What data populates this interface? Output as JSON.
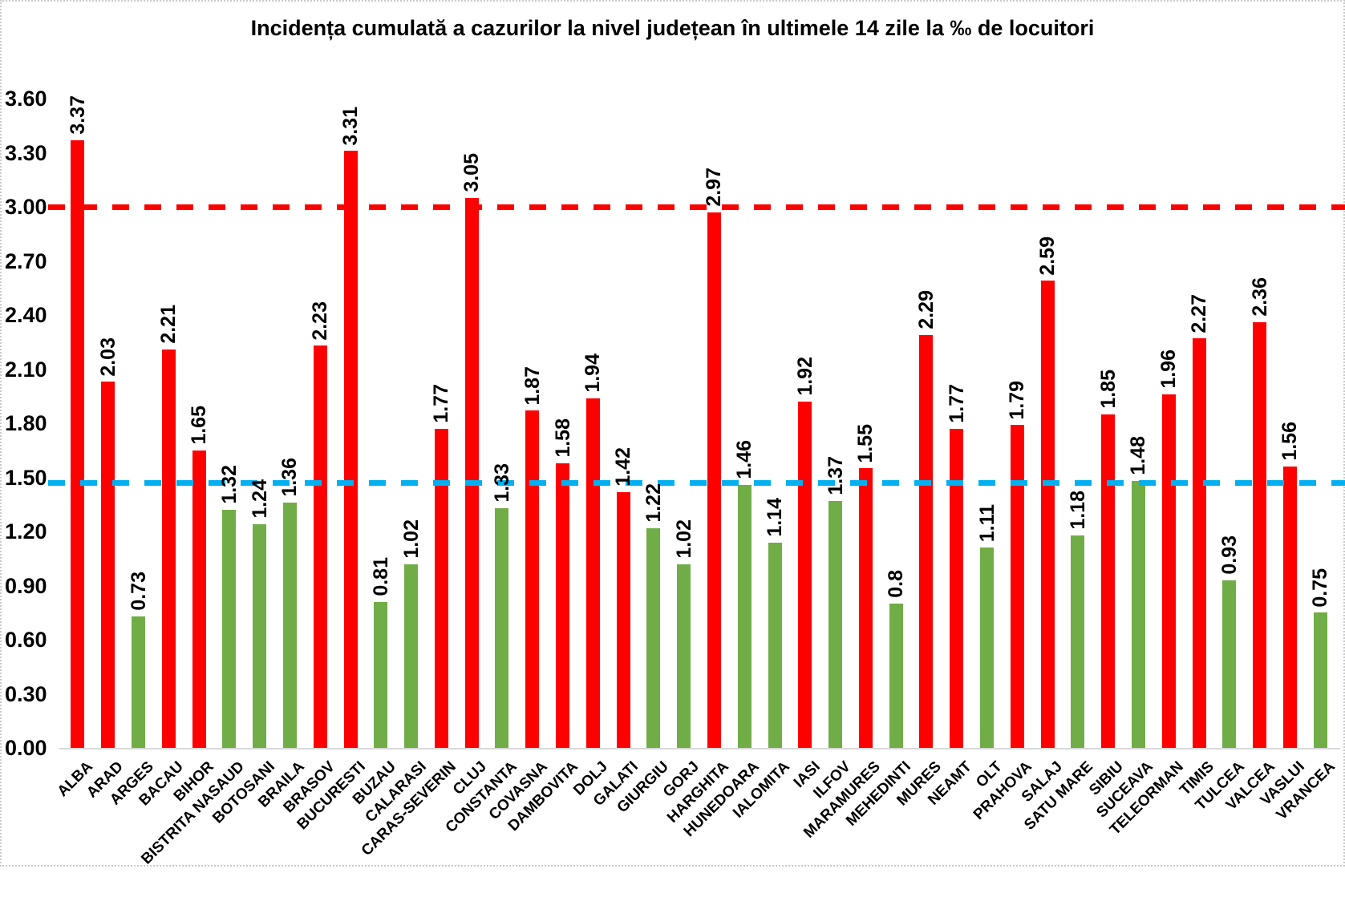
{
  "page": {
    "background": "#FFFFFF",
    "border_color": "#C9C9C9"
  },
  "chart_data": {
    "type": "bar",
    "title": "Incidența cumulată a cazurilor la nivel județean în ultimele 14 zile la ‰ de locuitori",
    "xlabel": "",
    "ylabel": "",
    "ylim": [
      0,
      3.6
    ],
    "ytick_labels": [
      "0.00",
      "0.30",
      "0.60",
      "0.90",
      "1.20",
      "1.50",
      "1.80",
      "2.10",
      "2.40",
      "2.70",
      "3.00",
      "3.30",
      "3.60"
    ],
    "grid": false,
    "legend": false,
    "axis_line_color": "#D9D9D9",
    "colors": {
      "red": "#FF0000",
      "green": "#70AD47"
    },
    "reference_lines": [
      {
        "name": "reference-line-red",
        "value": 3.0,
        "color": "#FF0000",
        "style": "dashed"
      },
      {
        "name": "reference-line-blue",
        "value": 1.47,
        "color": "#00B0F0",
        "style": "dashed"
      }
    ],
    "bars": [
      {
        "category": "ALBA",
        "value": 3.37,
        "label": "3.37",
        "color": "red"
      },
      {
        "category": "ARAD",
        "value": 2.03,
        "label": "2.03",
        "color": "red"
      },
      {
        "category": "ARGES",
        "value": 0.73,
        "label": "0.73",
        "color": "green"
      },
      {
        "category": "BACAU",
        "value": 2.21,
        "label": "2.21",
        "color": "red"
      },
      {
        "category": "BIHOR",
        "value": 1.65,
        "label": "1.65",
        "color": "red"
      },
      {
        "category": "BISTRITA NASAUD",
        "value": 1.32,
        "label": "1.32",
        "color": "green"
      },
      {
        "category": "BOTOSANI",
        "value": 1.24,
        "label": "1.24",
        "color": "green"
      },
      {
        "category": "BRAILA",
        "value": 1.36,
        "label": "1.36",
        "color": "green"
      },
      {
        "category": "BRASOV",
        "value": 2.23,
        "label": "2.23",
        "color": "red"
      },
      {
        "category": "BUCURESTI",
        "value": 3.31,
        "label": "3.31",
        "color": "red"
      },
      {
        "category": "BUZAU",
        "value": 0.81,
        "label": "0.81",
        "color": "green"
      },
      {
        "category": "CALARASI",
        "value": 1.02,
        "label": "1.02",
        "color": "green"
      },
      {
        "category": "CARAS-SEVERIN",
        "value": 1.77,
        "label": "1.77",
        "color": "red"
      },
      {
        "category": "CLUJ",
        "value": 3.05,
        "label": "3.05",
        "color": "red"
      },
      {
        "category": "CONSTANTA",
        "value": 1.33,
        "label": "1.33",
        "color": "green"
      },
      {
        "category": "COVASNA",
        "value": 1.87,
        "label": "1.87",
        "color": "red"
      },
      {
        "category": "DAMBOVITA",
        "value": 1.58,
        "label": "1.58",
        "color": "red"
      },
      {
        "category": "DOLJ",
        "value": 1.94,
        "label": "1.94",
        "color": "red"
      },
      {
        "category": "GALATI",
        "value": 1.42,
        "label": "1.42",
        "color": "red"
      },
      {
        "category": "GIURGIU",
        "value": 1.22,
        "label": "1.22",
        "color": "green"
      },
      {
        "category": "GORJ",
        "value": 1.02,
        "label": "1.02",
        "color": "green"
      },
      {
        "category": "HARGHITA",
        "value": 2.97,
        "label": "2.97",
        "color": "red"
      },
      {
        "category": "HUNEDOARA",
        "value": 1.46,
        "label": "1.46",
        "color": "green"
      },
      {
        "category": "IALOMITA",
        "value": 1.14,
        "label": "1.14",
        "color": "green"
      },
      {
        "category": "IASI",
        "value": 1.92,
        "label": "1.92",
        "color": "red"
      },
      {
        "category": "ILFOV",
        "value": 1.37,
        "label": "1.37",
        "color": "green"
      },
      {
        "category": "MARAMURES",
        "value": 1.55,
        "label": "1.55",
        "color": "red"
      },
      {
        "category": "MEHEDINTI",
        "value": 0.8,
        "label": "0.8",
        "color": "green"
      },
      {
        "category": "MURES",
        "value": 2.29,
        "label": "2.29",
        "color": "red"
      },
      {
        "category": "NEAMT",
        "value": 1.77,
        "label": "1.77",
        "color": "red"
      },
      {
        "category": "OLT",
        "value": 1.11,
        "label": "1.11",
        "color": "green"
      },
      {
        "category": "PRAHOVA",
        "value": 1.79,
        "label": "1.79",
        "color": "red"
      },
      {
        "category": "SALAJ",
        "value": 2.59,
        "label": "2.59",
        "color": "red"
      },
      {
        "category": "SATU MARE",
        "value": 1.18,
        "label": "1.18",
        "color": "green"
      },
      {
        "category": "SIBIU",
        "value": 1.85,
        "label": "1.85",
        "color": "red"
      },
      {
        "category": "SUCEAVA",
        "value": 1.48,
        "label": "1.48",
        "color": "green"
      },
      {
        "category": "TELEORMAN",
        "value": 1.96,
        "label": "1.96",
        "color": "red"
      },
      {
        "category": "TIMIS",
        "value": 2.27,
        "label": "2.27",
        "color": "red"
      },
      {
        "category": "TULCEA",
        "value": 0.93,
        "label": "0.93",
        "color": "green"
      },
      {
        "category": "VALCEA",
        "value": 2.36,
        "label": "2.36",
        "color": "red"
      },
      {
        "category": "VASLUI",
        "value": 1.56,
        "label": "1.56",
        "color": "red"
      },
      {
        "category": "VRANCEA",
        "value": 0.75,
        "label": "0.75",
        "color": "green"
      }
    ]
  }
}
